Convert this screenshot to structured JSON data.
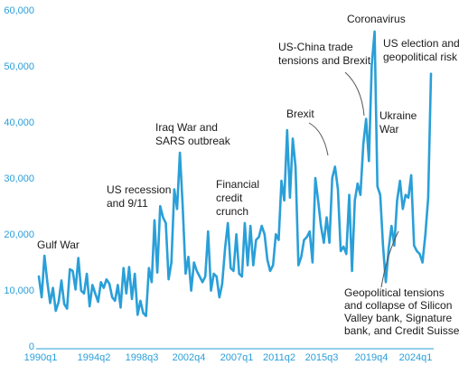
{
  "chart_data": {
    "type": "line",
    "title": "",
    "xlabel": "",
    "ylabel": "",
    "ylim": [
      0,
      60000
    ],
    "yticks": [
      "0",
      "10,000",
      "20,000",
      "30,000",
      "40,000",
      "50,000",
      "60,000"
    ],
    "xticks": [
      "1990q1",
      "1994q2",
      "1998q3",
      "2002q4",
      "2007q1",
      "2011q2",
      "2015q3",
      "2019q4",
      "2024q1"
    ],
    "grid": false,
    "colors": {
      "line": "#2a9fd8",
      "axis_text": "#2a9fd8",
      "annotation": "#1a1a1a",
      "leader": "#555555"
    },
    "series": [
      {
        "values": [
          12500,
          8800,
          16200,
          11500,
          7800,
          10500,
          6400,
          8000,
          11800,
          7600,
          6800,
          13800,
          13500,
          10200,
          15800,
          10000,
          9500,
          13000,
          7200,
          11000,
          9500,
          8000,
          11500,
          10500,
          12000,
          11200,
          8800,
          8200,
          11000,
          7000,
          14000,
          9500,
          14200,
          8500,
          13000,
          5700,
          8200,
          6000,
          5500,
          14000,
          11500,
          22500,
          13200,
          25000,
          23000,
          22000,
          12000,
          15000,
          28000,
          24500,
          34500,
          25000,
          13000,
          16000,
          10000,
          15000,
          13500,
          12500,
          11500,
          12500,
          20500,
          10000,
          13000,
          12500,
          8800,
          11200,
          17500,
          22000,
          14000,
          13500,
          20000,
          13000,
          12500,
          22000,
          14500,
          21500,
          14500,
          19000,
          19500,
          21500,
          20000,
          15500,
          13500,
          14500,
          20000,
          19000,
          29500,
          26000,
          38500,
          26500,
          37000,
          32000,
          14500,
          16000,
          19000,
          19500,
          20500,
          15000,
          30000,
          26000,
          21500,
          18500,
          23000,
          18500,
          30000,
          32000,
          28000,
          17000,
          17800,
          16500,
          27000,
          13500,
          26000,
          29000,
          27000,
          36000,
          40500,
          33000,
          50000,
          56000,
          28500,
          27000,
          18000,
          11500,
          17500,
          21500,
          18000,
          26000,
          29500,
          24500,
          27000,
          26500,
          30500,
          18000,
          17000,
          16500,
          15000,
          20000,
          26500,
          48500
        ]
      }
    ],
    "annotations": [
      {
        "lines": [
          "Gulf War"
        ]
      },
      {
        "lines": [
          "US recession",
          "and 9/11"
        ]
      },
      {
        "lines": [
          "Iraq War and",
          "SARS outbreak"
        ]
      },
      {
        "lines": [
          "Financial",
          "credit",
          "crunch"
        ]
      },
      {
        "lines": [
          "Brexit"
        ]
      },
      {
        "lines": [
          "US-China trade",
          "tensions and Brexit"
        ]
      },
      {
        "lines": [
          "Coronavirus"
        ]
      },
      {
        "lines": [
          "US election and",
          "geopolitical risk"
        ]
      },
      {
        "lines": [
          "Ukraine",
          "War"
        ]
      },
      {
        "lines": [
          "Geopolitical tensions",
          "and collapse of Silicon",
          "Valley bank, Signature",
          "bank, and Credit Suisse"
        ]
      }
    ]
  }
}
